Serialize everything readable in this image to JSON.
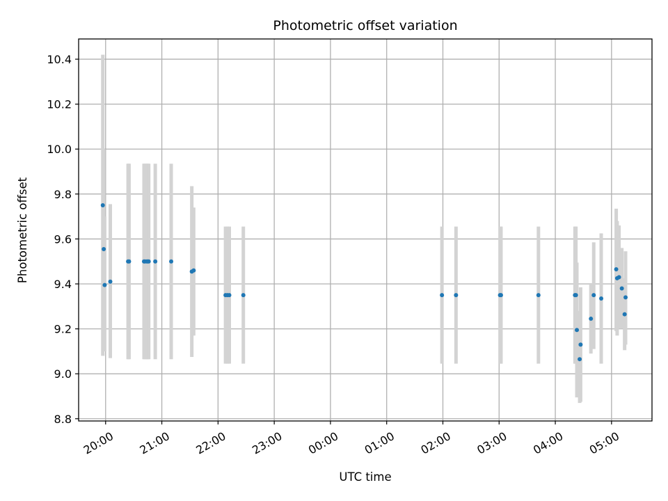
{
  "chart_data": {
    "type": "scatter",
    "title": "Photometric offset variation",
    "xlabel": "UTC time",
    "ylabel": "Photometric offset",
    "x_ticks": [
      "20:00",
      "21:00",
      "22:00",
      "23:00",
      "00:00",
      "01:00",
      "02:00",
      "03:00",
      "04:00",
      "05:00"
    ],
    "y_ticks": [
      "8.8",
      "9.0",
      "9.2",
      "9.4",
      "9.6",
      "9.8",
      "10.0",
      "10.2",
      "10.4"
    ],
    "xlim_hours": [
      19.52,
      5.72
    ],
    "ylim": [
      8.79,
      10.49
    ],
    "grid": true,
    "colors": {
      "points": "#1f77b4",
      "errorbars": "#d3d3d3",
      "grid": "#b0b0b0"
    },
    "points": [
      {
        "t": "19:57",
        "y": 9.75,
        "lo": 9.08,
        "hi": 10.42
      },
      {
        "t": "19:58",
        "y": 9.555,
        "lo": 9.1,
        "hi": 10.0
      },
      {
        "t": "19:59",
        "y": 9.395,
        "lo": 9.1,
        "hi": 9.7
      },
      {
        "t": "20:05",
        "y": 9.41,
        "lo": 9.07,
        "hi": 9.755
      },
      {
        "t": "20:24",
        "y": 9.5,
        "lo": 9.065,
        "hi": 9.935
      },
      {
        "t": "20:25",
        "y": 9.5,
        "lo": 9.065,
        "hi": 9.935
      },
      {
        "t": "20:41",
        "y": 9.5,
        "lo": 9.065,
        "hi": 9.935
      },
      {
        "t": "20:42",
        "y": 9.5,
        "lo": 9.065,
        "hi": 9.935
      },
      {
        "t": "20:44",
        "y": 9.5,
        "lo": 9.065,
        "hi": 9.935
      },
      {
        "t": "20:45",
        "y": 9.5,
        "lo": 9.065,
        "hi": 9.935
      },
      {
        "t": "20:46",
        "y": 9.5,
        "lo": 9.065,
        "hi": 9.935
      },
      {
        "t": "20:53",
        "y": 9.5,
        "lo": 9.065,
        "hi": 9.935
      },
      {
        "t": "21:10",
        "y": 9.5,
        "lo": 9.065,
        "hi": 9.935
      },
      {
        "t": "21:32",
        "y": 9.455,
        "lo": 9.075,
        "hi": 9.835
      },
      {
        "t": "21:34",
        "y": 9.46,
        "lo": 9.17,
        "hi": 9.74
      },
      {
        "t": "22:08",
        "y": 9.35,
        "lo": 9.045,
        "hi": 9.655
      },
      {
        "t": "22:10",
        "y": 9.35,
        "lo": 9.045,
        "hi": 9.655
      },
      {
        "t": "22:12",
        "y": 9.35,
        "lo": 9.045,
        "hi": 9.655
      },
      {
        "t": "22:27",
        "y": 9.35,
        "lo": 9.045,
        "hi": 9.655
      },
      {
        "t": "01:59",
        "y": 9.35,
        "lo": 9.045,
        "hi": 9.655
      },
      {
        "t": "02:14",
        "y": 9.35,
        "lo": 9.045,
        "hi": 9.655
      },
      {
        "t": "03:01",
        "y": 9.35,
        "lo": 9.045,
        "hi": 9.655
      },
      {
        "t": "03:02",
        "y": 9.35,
        "lo": 9.045,
        "hi": 9.655
      },
      {
        "t": "03:42",
        "y": 9.35,
        "lo": 9.045,
        "hi": 9.655
      },
      {
        "t": "04:21",
        "y": 9.35,
        "lo": 9.045,
        "hi": 9.655
      },
      {
        "t": "04:22",
        "y": 9.35,
        "lo": 9.045,
        "hi": 9.655
      },
      {
        "t": "04:23",
        "y": 9.195,
        "lo": 8.895,
        "hi": 9.495
      },
      {
        "t": "04:26",
        "y": 9.065,
        "lo": 8.87,
        "hi": 9.28
      },
      {
        "t": "04:27",
        "y": 9.13,
        "lo": 8.875,
        "hi": 9.385
      },
      {
        "t": "04:38",
        "y": 9.245,
        "lo": 9.09,
        "hi": 9.4
      },
      {
        "t": "04:41",
        "y": 9.35,
        "lo": 9.11,
        "hi": 9.585
      },
      {
        "t": "04:49",
        "y": 9.335,
        "lo": 9.045,
        "hi": 9.625
      },
      {
        "t": "05:05",
        "y": 9.465,
        "lo": 9.19,
        "hi": 9.735
      },
      {
        "t": "05:06",
        "y": 9.425,
        "lo": 9.17,
        "hi": 9.68
      },
      {
        "t": "05:08",
        "y": 9.43,
        "lo": 9.2,
        "hi": 9.66
      },
      {
        "t": "05:11",
        "y": 9.38,
        "lo": 9.2,
        "hi": 9.56
      },
      {
        "t": "05:14",
        "y": 9.265,
        "lo": 9.105,
        "hi": 9.425
      },
      {
        "t": "05:15",
        "y": 9.34,
        "lo": 9.13,
        "hi": 9.545
      }
    ]
  }
}
